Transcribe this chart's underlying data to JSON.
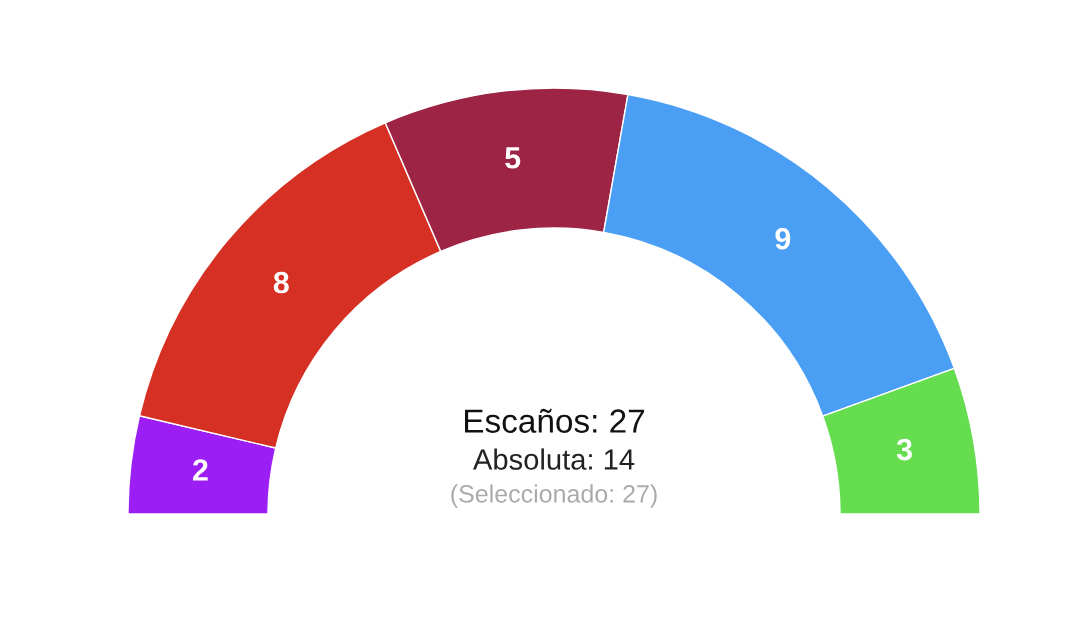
{
  "chart_data": {
    "type": "donut",
    "categories": [
      null,
      null,
      null,
      null,
      null
    ],
    "values": [
      2,
      8,
      5,
      9,
      3
    ],
    "colors": [
      "#9b1ff5",
      "#d63024",
      "#9e2445",
      "#4a9ff5",
      "#66dd4f"
    ],
    "data_labels": true,
    "annotations": [
      "Escaños: 27",
      "Absoluta: 14",
      "(Seleccionado: 27)"
    ]
  }
}
